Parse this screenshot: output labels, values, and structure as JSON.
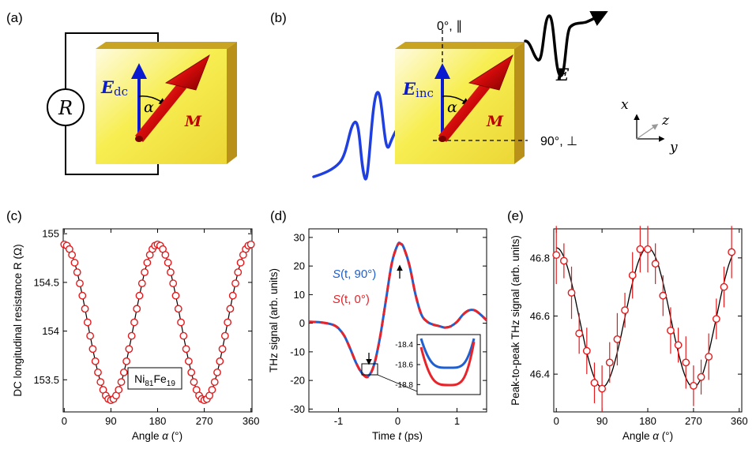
{
  "panels": {
    "a": {
      "label": "(a)",
      "resistor": "R",
      "field_main": "E",
      "field_sub": "dc",
      "angle": "α",
      "magnetization": "M"
    },
    "b": {
      "label": "(b)",
      "field_main": "E",
      "field_sub": "inc",
      "angle": "α",
      "magnetization": "M",
      "emitted": "E",
      "axis_parallel": "0°, ∥",
      "axis_perp": "90°, ⊥",
      "coord_x": "x",
      "coord_y": "y",
      "coord_z": "z"
    },
    "c": {
      "label": "(c)"
    },
    "d": {
      "label": "(d)"
    },
    "e": {
      "label": "(e)"
    }
  },
  "colors": {
    "slab_face": "#f7ee52",
    "slab_edge": "#c9a322",
    "arrow_red": "#c00000",
    "field_blue": "#0a1ad0",
    "marker": "#e41a1c",
    "curve": "#000000",
    "series_blue": "#1f5fd0",
    "series_red": "#e8242a"
  },
  "chart_data": [
    {
      "panel": "c",
      "type": "scatter",
      "xlabel_main": "Angle",
      "xlabel_sym": "α",
      "xlabel_unit": "(°)",
      "ylabel": "DC longitudinal resistance R (Ω)",
      "xlim": [
        -2,
        362
      ],
      "ylim": [
        153.17,
        155.05
      ],
      "xticks": [
        0,
        90,
        180,
        270,
        360
      ],
      "yticks": [
        153.5,
        154,
        154.5,
        155
      ],
      "ytick_labels": [
        "153.5",
        "154",
        "154.5",
        "155"
      ],
      "annotation_base": "Ni",
      "annotation_sub1": "81",
      "annotation_mid": "Fe",
      "annotation_sub2": "19",
      "fit": {
        "offset": 154.09,
        "amplitude": 0.8,
        "period_deg": 180
      },
      "x": [
        0,
        5,
        10,
        15,
        20,
        25,
        30,
        35,
        40,
        45,
        50,
        55,
        60,
        65,
        70,
        75,
        80,
        85,
        90,
        95,
        100,
        105,
        110,
        115,
        120,
        125,
        130,
        135,
        140,
        145,
        150,
        155,
        160,
        165,
        170,
        175,
        180,
        185,
        190,
        195,
        200,
        205,
        210,
        215,
        220,
        225,
        230,
        235,
        240,
        245,
        250,
        255,
        260,
        265,
        270,
        275,
        280,
        285,
        290,
        295,
        300,
        305,
        310,
        315,
        320,
        325,
        330,
        335,
        340,
        345,
        350,
        355,
        360
      ]
    },
    {
      "panel": "d",
      "type": "line",
      "xlabel_main": "Time",
      "xlabel_sym": "t",
      "xlabel_unit": "(ps)",
      "ylabel": "THz signal  (arb. units)",
      "xlim": [
        -1.5,
        1.5
      ],
      "ylim": [
        -31,
        33
      ],
      "xticks": [
        -1,
        0,
        1
      ],
      "yticks": [
        -30,
        -20,
        -10,
        0,
        10,
        20,
        30
      ],
      "series": [
        {
          "name_sym": "S",
          "name_args": "(t, 90°)",
          "color": "#1f5fd0",
          "x": [
            -1.5,
            -1.3,
            -1.1,
            -1.0,
            -0.9,
            -0.8,
            -0.7,
            -0.6,
            -0.5,
            -0.4,
            -0.3,
            -0.2,
            -0.1,
            0.0,
            0.05,
            0.1,
            0.2,
            0.3,
            0.4,
            0.5,
            0.6,
            0.7,
            0.8,
            0.9,
            1.0,
            1.1,
            1.2,
            1.3,
            1.4,
            1.5
          ],
          "y": [
            0.5,
            0.3,
            -0.5,
            -1.8,
            -4.5,
            -9,
            -14,
            -17.5,
            -18.5,
            -14.5,
            -5,
            8,
            21,
            27.5,
            27.8,
            26.5,
            20,
            10,
            3,
            0.5,
            -0.5,
            -1,
            -1.5,
            -1,
            0.5,
            3,
            4.5,
            4.5,
            3,
            1
          ]
        },
        {
          "name_sym": "S",
          "name_args": "(t, 0°)",
          "color": "#e8242a",
          "x": [
            -1.5,
            -1.3,
            -1.1,
            -1.0,
            -0.9,
            -0.8,
            -0.7,
            -0.6,
            -0.5,
            -0.4,
            -0.3,
            -0.2,
            -0.1,
            0.0,
            0.05,
            0.1,
            0.2,
            0.3,
            0.4,
            0.5,
            0.6,
            0.7,
            0.8,
            0.9,
            1.0,
            1.1,
            1.2,
            1.3,
            1.4,
            1.5
          ],
          "y": [
            0.5,
            0.3,
            -0.5,
            -1.8,
            -4.5,
            -9,
            -14,
            -17.6,
            -18.7,
            -14.6,
            -5,
            8,
            21,
            27.4,
            27.7,
            26.4,
            20,
            10,
            3,
            0.5,
            -0.5,
            -1,
            -1.5,
            -1,
            0.5,
            3,
            4.5,
            4.5,
            3,
            1
          ]
        }
      ],
      "inset": {
        "ylim": [
          -18.9,
          -18.3
        ],
        "yticks": [
          -18.4,
          -18.6,
          -18.8
        ],
        "ytick_labels": [
          "-18.4",
          "-18.6",
          "-18.8"
        ],
        "blue_min": -18.65,
        "red_min": -18.78
      }
    },
    {
      "panel": "e",
      "type": "scatter",
      "xlabel_main": "Angle",
      "xlabel_sym": "α",
      "xlabel_unit": "(°)",
      "ylabel": "Peak-to-peak THz signal (arb. units)",
      "xlim": [
        -5,
        365
      ],
      "ylim": [
        46.27,
        46.9
      ],
      "xticks": [
        0,
        90,
        180,
        270,
        360
      ],
      "yticks": [
        46.4,
        46.6,
        46.8
      ],
      "ytick_labels": [
        "46.4",
        "46.6",
        "46.8"
      ],
      "fit": {
        "offset": 46.595,
        "amplitude": 0.24,
        "period_deg": 180
      },
      "x": [
        0,
        15,
        30,
        45,
        60,
        75,
        90,
        105,
        120,
        135,
        150,
        165,
        180,
        195,
        210,
        225,
        240,
        255,
        270,
        285,
        300,
        315,
        330,
        345
      ],
      "y": [
        46.81,
        46.79,
        46.68,
        46.54,
        46.48,
        46.37,
        46.35,
        46.44,
        46.52,
        46.62,
        46.74,
        46.83,
        46.83,
        46.78,
        46.67,
        46.55,
        46.5,
        46.44,
        46.36,
        46.39,
        46.46,
        46.59,
        46.7,
        46.82
      ],
      "err": [
        0.1,
        0.06,
        0.09,
        0.07,
        0.08,
        0.07,
        0.08,
        0.07,
        0.09,
        0.06,
        0.08,
        0.08,
        0.08,
        0.07,
        0.07,
        0.08,
        0.06,
        0.09,
        0.07,
        0.06,
        0.08,
        0.07,
        0.07,
        0.09
      ]
    }
  ]
}
